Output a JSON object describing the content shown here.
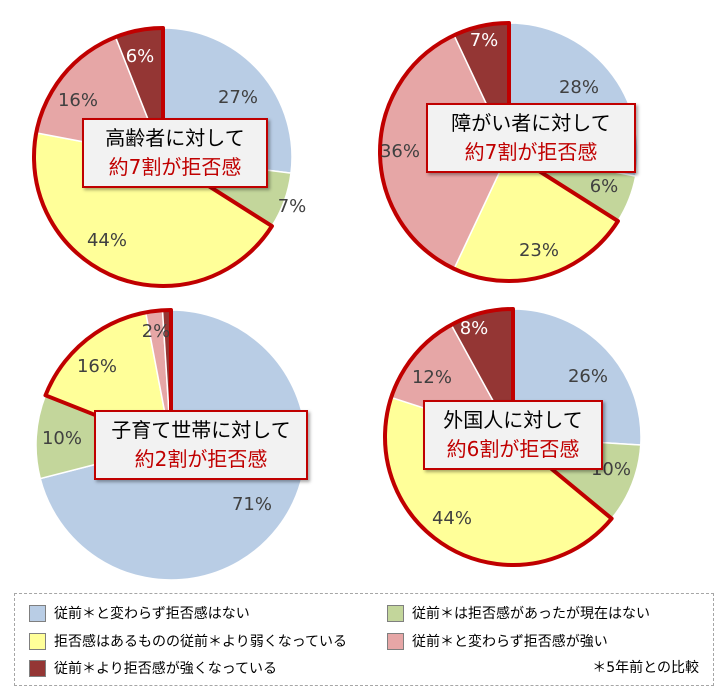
{
  "colors": {
    "no_resistance": "#b9cde5",
    "had_resistance_none_now": "#c3d69b",
    "weaker_than_before": "#ffff99",
    "strong_as_before": "#e6a6a6",
    "stronger_than_before": "#943634",
    "resistance_outline": "#c00000"
  },
  "callouts": [
    {
      "line1": "高齢者に対して",
      "line2": "約7割が拒否感"
    },
    {
      "line1": "障がい者に対して",
      "line2": "約7割が拒否感"
    },
    {
      "line1": "子育て世帯に対して",
      "line2": "約2割が拒否感"
    },
    {
      "line1": "外国人に対して",
      "line2": "約6割が拒否感"
    }
  ],
  "legend": {
    "items": [
      {
        "label": "従前＊と変わらず拒否感はない",
        "color": "#b9cde5"
      },
      {
        "label": "従前＊は拒否感があったが現在はない",
        "color": "#c3d69b"
      },
      {
        "label": "拒否感はあるものの従前＊より弱くなっている",
        "color": "#ffff99"
      },
      {
        "label": "従前＊と変わらず拒否感が強い",
        "color": "#e6a6a6"
      },
      {
        "label": "従前＊より拒否感が強くなっている",
        "color": "#943634"
      }
    ],
    "note": "＊5年前との比較"
  },
  "chart_data": [
    {
      "type": "pie",
      "categories": [
        "従前＊と変わらず拒否感はない",
        "従前＊は拒否感があったが現在はない",
        "拒否感はあるものの従前＊より弱くなっている",
        "従前＊と変わらず拒否感が強い",
        "従前＊より拒否感が強くなっている"
      ],
      "values": [
        27,
        7,
        44,
        16,
        6
      ],
      "labels": [
        "27%",
        "7%",
        "44%",
        "16%",
        "6%"
      ],
      "highlight": "約7割が拒否感"
    },
    {
      "type": "pie",
      "categories": [
        "従前＊と変わらず拒否感はない",
        "従前＊は拒否感があったが現在はない",
        "拒否感はあるものの従前＊より弱くなっている",
        "従前＊と変わらず拒否感が強い",
        "従前＊より拒否感が強くなっている"
      ],
      "values": [
        28,
        6,
        23,
        36,
        7
      ],
      "labels": [
        "28%",
        "6%",
        "23%",
        "36%",
        "7%"
      ],
      "highlight": "約7割が拒否感"
    },
    {
      "type": "pie",
      "categories": [
        "従前＊と変わらず拒否感はない",
        "従前＊は拒否感があったが現在はない",
        "拒否感はあるものの従前＊より弱くなっている",
        "従前＊と変わらず拒否感が強い",
        "従前＊より拒否感が強くなっている"
      ],
      "values": [
        71,
        10,
        16,
        2,
        1
      ],
      "labels": [
        "71%",
        "10%",
        "16%",
        "2%",
        ""
      ],
      "highlight": "約2割が拒否感"
    },
    {
      "type": "pie",
      "categories": [
        "従前＊と変わらず拒否感はない",
        "従前＊は拒否感があったが現在はない",
        "拒否感はあるものの従前＊より弱くなっている",
        "従前＊と変わらず拒否感が強い",
        "従前＊より拒否感が強くなっている"
      ],
      "values": [
        26,
        10,
        44,
        12,
        8
      ],
      "labels": [
        "26%",
        "10%",
        "44%",
        "12%",
        "8%"
      ],
      "highlight": "約6割が拒否感"
    }
  ]
}
